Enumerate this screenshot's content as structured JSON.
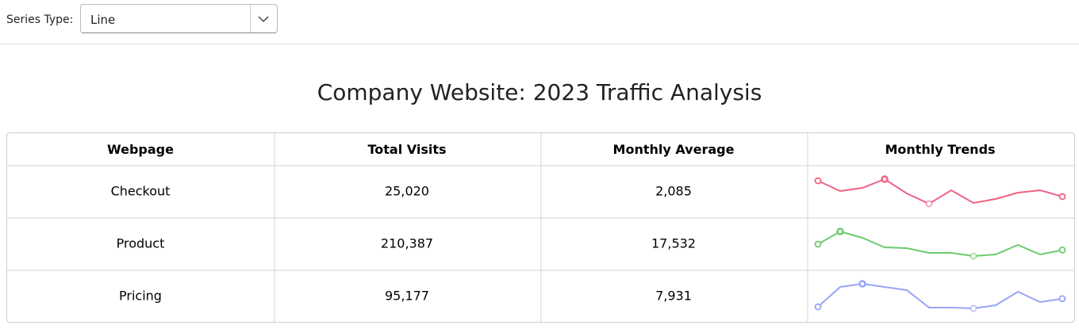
{
  "toolbar": {
    "label": "Series Type:",
    "selected": "Line"
  },
  "title": "Company Website: 2023 Traffic Analysis",
  "table": {
    "columns": [
      "Webpage",
      "Total Visits",
      "Monthly Average",
      "Monthly Trends"
    ],
    "rows": [
      {
        "webpage": "Checkout",
        "total": "25,020",
        "average": "2,085",
        "color": "#ee6283",
        "trend": [
          2362,
          2115,
          2191,
          2400,
          2058,
          1811,
          2134,
          1830,
          1925,
          2077,
          2134,
          1983
        ]
      },
      {
        "webpage": "Product",
        "total": "210,387",
        "average": "17,532",
        "color": "#6ccb6c",
        "trend": [
          18237,
          20637,
          19437,
          17637,
          17487,
          16587,
          16587,
          15987,
          16287,
          18087,
          16287,
          17130
        ]
      },
      {
        "webpage": "Pricing",
        "total": "95,177",
        "average": "7,931",
        "color": "#98a4f6",
        "trend": [
          7265,
          8765,
          9005,
          8765,
          8525,
          7205,
          7205,
          7145,
          7385,
          8405,
          7625,
          7882
        ]
      }
    ]
  }
}
